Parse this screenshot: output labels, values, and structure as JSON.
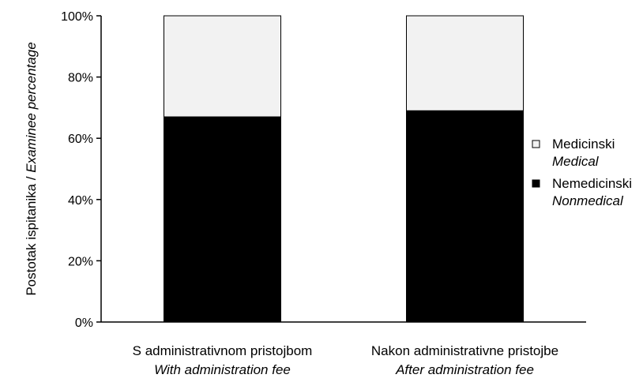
{
  "chart_data": {
    "type": "bar",
    "stacked": true,
    "categories": [
      {
        "label": "S administrativnom pristojbom",
        "label_en": "With administration fee"
      },
      {
        "label": "Nakon administrativne pristojbe",
        "label_en": "After administration fee"
      }
    ],
    "series": [
      {
        "name": "Nemedicinski",
        "name_en": "Nonmedical",
        "color": "#000000",
        "values": [
          67,
          69
        ]
      },
      {
        "name": "Medicinski",
        "name_en": "Medical",
        "color": "#f2f2f2",
        "values": [
          33,
          31
        ]
      }
    ],
    "ylabel": "Postotak ispitanika / ",
    "ylabel_en": "Examinee percentage",
    "yticks": [
      "0%",
      "20%",
      "40%",
      "60%",
      "80%",
      "100%"
    ],
    "ylim": [
      0,
      100
    ],
    "grid": false,
    "legend": {
      "placement": "right",
      "items": [
        {
          "name": "Medicinski",
          "name_en": "Medical",
          "color": "#f2f2f2"
        },
        {
          "name": "Nemedicinski",
          "name_en": "Nonmedical",
          "color": "#000000"
        }
      ]
    }
  }
}
